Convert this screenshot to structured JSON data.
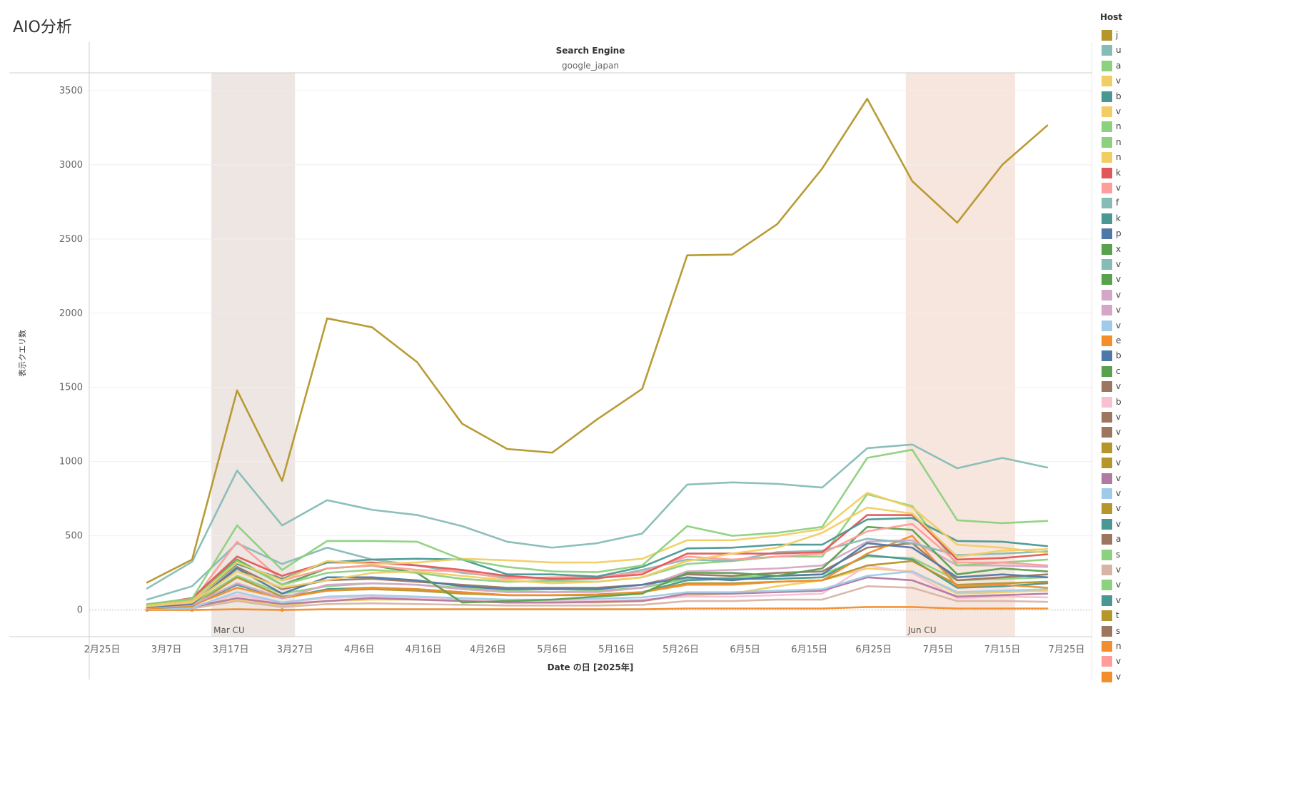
{
  "page": {
    "title": "AIO分析"
  },
  "legend": {
    "title": "Host",
    "items": [
      {
        "label": "j",
        "color": "#b5962a"
      },
      {
        "label": "u",
        "color": "#86bcb6"
      },
      {
        "label": "a",
        "color": "#8cd17d"
      },
      {
        "label": "v",
        "color": "#f1ce63"
      },
      {
        "label": "b",
        "color": "#499894"
      },
      {
        "label": "v",
        "color": "#f1ce63"
      },
      {
        "label": "n",
        "color": "#8cd17d"
      },
      {
        "label": "n",
        "color": "#8cd17d"
      },
      {
        "label": "n",
        "color": "#f1ce63"
      },
      {
        "label": "k",
        "color": "#e15759"
      },
      {
        "label": "v",
        "color": "#ff9d9a"
      },
      {
        "label": "f",
        "color": "#86bcb6"
      },
      {
        "label": "k",
        "color": "#499894"
      },
      {
        "label": "p",
        "color": "#4e79a7"
      },
      {
        "label": "x",
        "color": "#59a14f"
      },
      {
        "label": "v",
        "color": "#86bcb6"
      },
      {
        "label": "v",
        "color": "#59a14f"
      },
      {
        "label": "v",
        "color": "#d4a6c8"
      },
      {
        "label": "v",
        "color": "#d4a6c8"
      },
      {
        "label": "v",
        "color": "#a0cbe8"
      },
      {
        "label": "e",
        "color": "#f28e2b"
      },
      {
        "label": "b",
        "color": "#4e79a7"
      },
      {
        "label": "c",
        "color": "#59a14f"
      },
      {
        "label": "v",
        "color": "#9d7660"
      },
      {
        "label": "b",
        "color": "#fabfd2"
      },
      {
        "label": "v",
        "color": "#9d7660"
      },
      {
        "label": "v",
        "color": "#9d7660"
      },
      {
        "label": "v",
        "color": "#b5962a"
      },
      {
        "label": "v",
        "color": "#b5962a"
      },
      {
        "label": "v",
        "color": "#b07aa1"
      },
      {
        "label": "v",
        "color": "#a0cbe8"
      },
      {
        "label": "v",
        "color": "#b5962a"
      },
      {
        "label": "v",
        "color": "#499894"
      },
      {
        "label": "a",
        "color": "#9d7660"
      },
      {
        "label": "s",
        "color": "#8cd17d"
      },
      {
        "label": "v",
        "color": "#d7b5a6"
      },
      {
        "label": "v",
        "color": "#8cd17d"
      },
      {
        "label": "v",
        "color": "#499894"
      },
      {
        "label": "t",
        "color": "#b5962a"
      },
      {
        "label": "s",
        "color": "#9d7660"
      },
      {
        "label": "n",
        "color": "#f28e2b"
      },
      {
        "label": "v",
        "color": "#ff9d9a"
      },
      {
        "label": "v",
        "color": "#f28e2b"
      }
    ]
  },
  "chart_data": {
    "type": "line",
    "column_header": "Search Engine",
    "panel_label": "google_japan",
    "xlabel": "Date の日 [2025年]",
    "ylabel": "表示クエリ数",
    "xlim": [
      "2025-02-23",
      "2025-07-29"
    ],
    "ylim": [
      -180,
      3620
    ],
    "y_ticks": [
      0,
      500,
      1000,
      1500,
      2000,
      2500,
      3000,
      3500
    ],
    "x_ticks": [
      {
        "date": "2025-02-25",
        "label": "2月25日"
      },
      {
        "date": "2025-03-07",
        "label": "3月7日"
      },
      {
        "date": "2025-03-17",
        "label": "3月17日"
      },
      {
        "date": "2025-03-27",
        "label": "3月27日"
      },
      {
        "date": "2025-04-06",
        "label": "4月6日"
      },
      {
        "date": "2025-04-16",
        "label": "4月16日"
      },
      {
        "date": "2025-04-26",
        "label": "4月26日"
      },
      {
        "date": "2025-05-06",
        "label": "5月6日"
      },
      {
        "date": "2025-05-16",
        "label": "5月16日"
      },
      {
        "date": "2025-05-26",
        "label": "5月26日"
      },
      {
        "date": "2025-06-05",
        "label": "6月5日"
      },
      {
        "date": "2025-06-15",
        "label": "6月15日"
      },
      {
        "date": "2025-06-25",
        "label": "6月25日"
      },
      {
        "date": "2025-07-05",
        "label": "7月5日"
      },
      {
        "date": "2025-07-15",
        "label": "7月15日"
      },
      {
        "date": "2025-07-25",
        "label": "7月25日"
      }
    ],
    "bands": [
      {
        "label": "Mar CU",
        "start": "2025-03-14",
        "end": "2025-03-27",
        "color": "#ede6e2"
      },
      {
        "label": "Jun CU",
        "start": "2025-06-30",
        "end": "2025-07-17",
        "color": "#f7e6de"
      }
    ],
    "x": [
      "2025-03-04",
      "2025-03-11",
      "2025-03-18",
      "2025-03-25",
      "2025-04-01",
      "2025-04-08",
      "2025-04-15",
      "2025-04-22",
      "2025-04-29",
      "2025-05-06",
      "2025-05-13",
      "2025-05-20",
      "2025-05-27",
      "2025-06-03",
      "2025-06-10",
      "2025-06-17",
      "2025-06-24",
      "2025-07-01",
      "2025-07-08",
      "2025-07-15",
      "2025-07-22"
    ],
    "series": [
      {
        "color": "#b5962a",
        "values": [
          185,
          340,
          1480,
          870,
          1965,
          1905,
          1670,
          1255,
          1085,
          1060,
          1285,
          1490,
          2390,
          2395,
          2600,
          2975,
          3445,
          2890,
          2610,
          3000,
          3265
        ]
      },
      {
        "color": "#86bcb6",
        "values": [
          145,
          325,
          940,
          570,
          740,
          675,
          640,
          565,
          460,
          420,
          450,
          515,
          845,
          860,
          850,
          825,
          1090,
          1115,
          955,
          1025,
          960
        ]
      },
      {
        "color": "#8cd17d",
        "values": [
          40,
          75,
          570,
          270,
          465,
          465,
          460,
          340,
          290,
          260,
          255,
          300,
          565,
          500,
          520,
          560,
          1025,
          1080,
          605,
          585,
          600
        ]
      },
      {
        "color": "#f1ce63",
        "values": [
          30,
          60,
          320,
          200,
          330,
          310,
          320,
          345,
          335,
          320,
          320,
          345,
          470,
          470,
          500,
          545,
          790,
          690,
          440,
          420,
          385
        ]
      },
      {
        "color": "#f1ce63",
        "values": [
          25,
          50,
          260,
          150,
          200,
          250,
          260,
          230,
          200,
          180,
          190,
          220,
          330,
          380,
          420,
          520,
          690,
          650,
          360,
          400,
          410
        ]
      },
      {
        "color": "#499894",
        "values": [
          30,
          60,
          310,
          210,
          320,
          340,
          345,
          340,
          240,
          240,
          225,
          290,
          415,
          420,
          440,
          440,
          610,
          620,
          465,
          460,
          430
        ]
      },
      {
        "color": "#e15759",
        "values": [
          35,
          80,
          360,
          230,
          320,
          320,
          300,
          270,
          230,
          210,
          215,
          240,
          380,
          380,
          380,
          390,
          640,
          640,
          340,
          350,
          375
        ]
      },
      {
        "color": "#ff9d9a",
        "values": [
          30,
          55,
          460,
          200,
          280,
          300,
          270,
          260,
          210,
          220,
          225,
          255,
          360,
          340,
          360,
          380,
          530,
          580,
          320,
          320,
          300
        ]
      },
      {
        "color": "#86bcb6",
        "values": [
          70,
          160,
          450,
          310,
          420,
          340,
          300,
          250,
          220,
          205,
          210,
          270,
          340,
          330,
          390,
          400,
          480,
          450,
          370,
          380,
          395
        ]
      },
      {
        "color": "#8cd17d",
        "values": [
          25,
          70,
          330,
          170,
          250,
          270,
          250,
          210,
          190,
          195,
          190,
          220,
          310,
          330,
          360,
          360,
          780,
          700,
          300,
          320,
          340
        ]
      },
      {
        "color": "#59a14f",
        "values": [
          30,
          70,
          340,
          170,
          280,
          300,
          250,
          50,
          60,
          70,
          90,
          110,
          250,
          250,
          230,
          280,
          560,
          540,
          240,
          280,
          260
        ]
      },
      {
        "color": "#4e79a7",
        "values": [
          20,
          40,
          280,
          110,
          220,
          220,
          200,
          160,
          140,
          140,
          140,
          170,
          220,
          200,
          230,
          240,
          450,
          420,
          220,
          240,
          220
        ]
      },
      {
        "color": "#d4a6c8",
        "values": [
          15,
          35,
          180,
          80,
          170,
          180,
          170,
          140,
          120,
          120,
          120,
          150,
          260,
          270,
          280,
          300,
          460,
          470,
          300,
          300,
          290
        ]
      },
      {
        "color": "#f28e2b",
        "values": [
          10,
          30,
          150,
          80,
          130,
          150,
          140,
          120,
          100,
          100,
          100,
          120,
          170,
          170,
          190,
          200,
          380,
          500,
          160,
          170,
          150
        ]
      },
      {
        "color": "#9d7660",
        "values": [
          20,
          40,
          290,
          140,
          200,
          210,
          190,
          170,
          150,
          150,
          150,
          170,
          240,
          230,
          250,
          260,
          420,
          450,
          200,
          220,
          240
        ]
      },
      {
        "color": "#b5962a",
        "values": [
          10,
          25,
          220,
          90,
          130,
          140,
          130,
          110,
          100,
          100,
          105,
          120,
          180,
          180,
          190,
          200,
          300,
          330,
          170,
          180,
          190
        ]
      },
      {
        "color": "#a0cbe8",
        "values": [
          5,
          15,
          120,
          50,
          90,
          100,
          90,
          80,
          70,
          70,
          75,
          85,
          120,
          120,
          130,
          140,
          230,
          260,
          120,
          130,
          140
        ]
      },
      {
        "color": "#b07aa1",
        "values": [
          5,
          20,
          80,
          40,
          60,
          80,
          70,
          60,
          50,
          50,
          55,
          60,
          110,
          110,
          120,
          130,
          220,
          200,
          90,
          100,
          110
        ]
      },
      {
        "color": "#fabfd2",
        "values": [
          10,
          25,
          100,
          50,
          80,
          90,
          80,
          70,
          60,
          60,
          60,
          70,
          90,
          90,
          100,
          110,
          300,
          250,
          80,
          90,
          85
        ]
      },
      {
        "color": "#499894",
        "values": [
          15,
          30,
          170,
          80,
          140,
          150,
          140,
          120,
          100,
          100,
          100,
          120,
          200,
          210,
          210,
          220,
          370,
          340,
          150,
          160,
          180
        ]
      },
      {
        "color": "#d7b5a6",
        "values": [
          5,
          10,
          60,
          20,
          40,
          45,
          40,
          35,
          30,
          30,
          30,
          35,
          60,
          60,
          70,
          70,
          160,
          150,
          60,
          60,
          55
        ]
      },
      {
        "color": "#f28e2b",
        "values": [
          0,
          0,
          5,
          0,
          5,
          5,
          5,
          5,
          5,
          5,
          5,
          5,
          10,
          10,
          10,
          10,
          20,
          20,
          10,
          10,
          10
        ]
      },
      {
        "color": "#8cd17d",
        "values": [
          20,
          40,
          230,
          110,
          160,
          180,
          170,
          150,
          130,
          120,
          130,
          150,
          210,
          220,
          230,
          240,
          360,
          350,
          200,
          210,
          220
        ]
      },
      {
        "color": "#f1ce63",
        "values": [
          5,
          15,
          70,
          30,
          60,
          70,
          70,
          60,
          50,
          50,
          50,
          60,
          100,
          110,
          160,
          200,
          280,
          260,
          110,
          120,
          130
        ]
      }
    ]
  }
}
